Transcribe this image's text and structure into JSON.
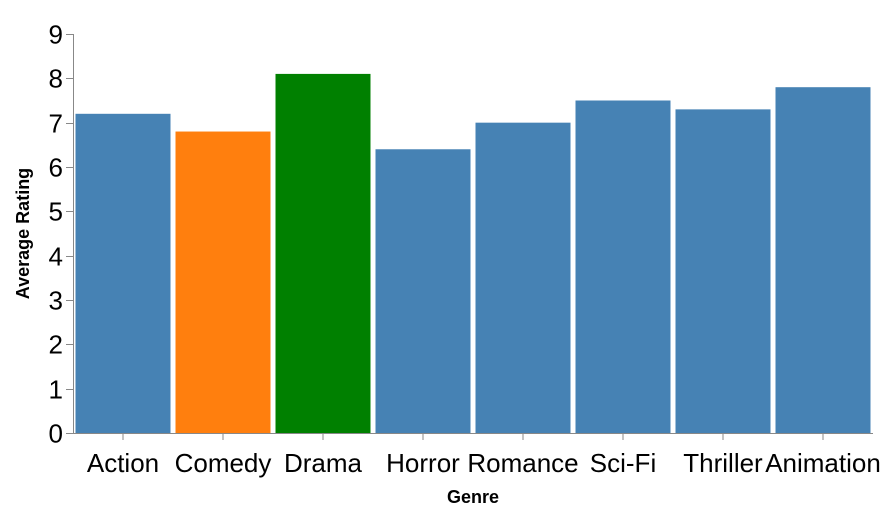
{
  "chart_data": {
    "type": "bar",
    "categories": [
      "Action",
      "Comedy",
      "Drama",
      "Horror",
      "Romance",
      "Sci-Fi",
      "Thriller",
      "Animation"
    ],
    "values": [
      7.2,
      6.8,
      8.1,
      6.4,
      7.0,
      7.5,
      7.3,
      7.8
    ],
    "colors": [
      "#4682b4",
      "#ff7f0e",
      "#008000",
      "#4682b4",
      "#4682b4",
      "#4682b4",
      "#4682b4",
      "#4682b4"
    ],
    "title": "",
    "xlabel": "Genre",
    "ylabel": "Average Rating",
    "ylim": [
      0,
      9
    ],
    "yticks": [
      0,
      1,
      2,
      3,
      4,
      5,
      6,
      7,
      8,
      9
    ],
    "grid": false,
    "legend": "none"
  }
}
